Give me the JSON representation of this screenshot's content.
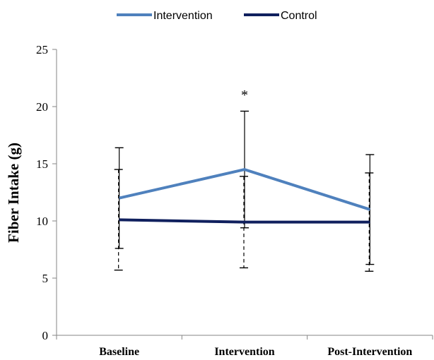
{
  "chart_data": {
    "type": "line",
    "ylabel": "Fiber Intake (g)",
    "xlabel": "",
    "ylim": [
      0,
      25
    ],
    "yticks": [
      0,
      5,
      10,
      15,
      20,
      25
    ],
    "categories": [
      "Baseline",
      "Intervention",
      "Post-Intervention"
    ],
    "legend_position": "top-center",
    "grid": false,
    "series": [
      {
        "name": "Intervention",
        "color": "#4f81bd",
        "values": [
          12.0,
          14.5,
          11.0
        ],
        "error": [
          4.4,
          5.1,
          4.8
        ],
        "error_style": "solid"
      },
      {
        "name": "Control",
        "color": "#10205e",
        "values": [
          10.1,
          9.9,
          9.9
        ],
        "error": [
          4.4,
          4.0,
          4.3
        ],
        "error_style": "dashed"
      }
    ],
    "annotations": [
      {
        "text": "*",
        "category": "Intervention",
        "y": 21.0
      }
    ]
  }
}
